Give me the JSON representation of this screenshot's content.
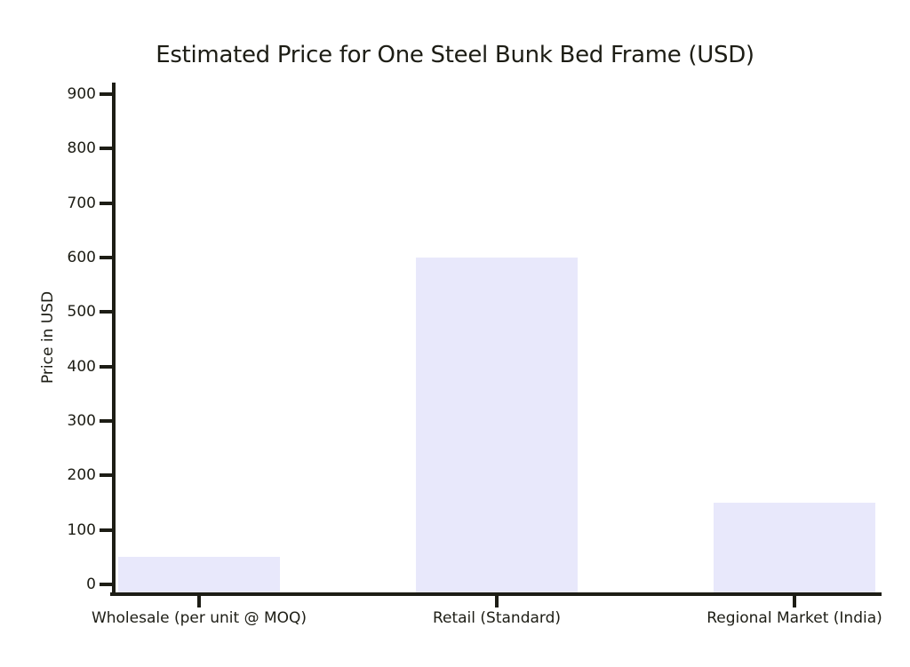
{
  "chart_data": {
    "type": "bar",
    "title": "Estimated Price for One Steel Bunk Bed Frame (USD)",
    "ylabel": "Price in USD",
    "xlabel": "",
    "categories": [
      "Wholesale (per unit @ MOQ)",
      "Retail (Standard)",
      "Regional Market (India)"
    ],
    "values": [
      50,
      600,
      150
    ],
    "ylim": [
      0,
      900
    ],
    "yticks": [
      0,
      100,
      200,
      300,
      400,
      500,
      600,
      700,
      800,
      900
    ],
    "grid": false,
    "legend": "none",
    "colors": {
      "bar_fill": "#e8e8fb",
      "axis": "#1d1d15",
      "text": "#1d1d15",
      "background": "#ffffff"
    }
  }
}
